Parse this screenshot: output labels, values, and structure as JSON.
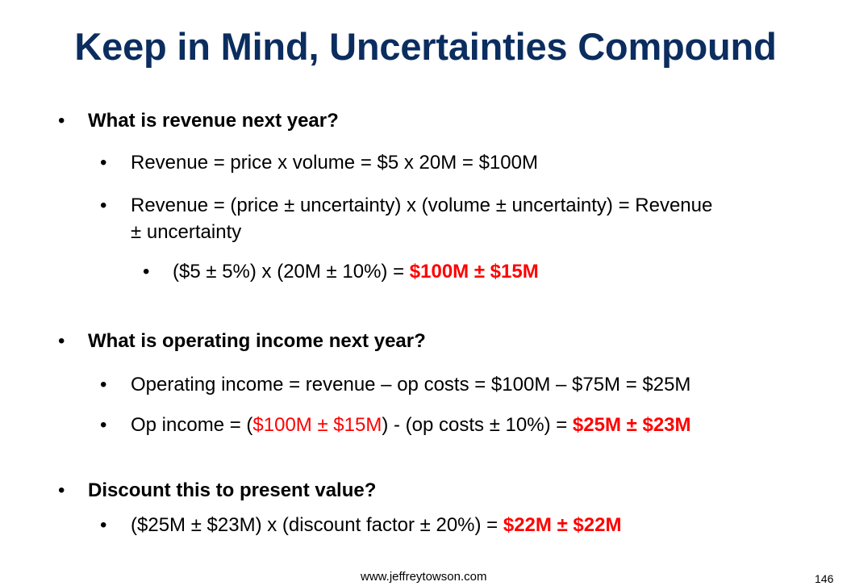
{
  "title": "Keep in Mind, Uncertainties Compound",
  "bullet_char": "•",
  "q1": "What is revenue next year?",
  "q1_a": "Revenue = price x volume = $5 x 20M = $100M",
  "q1_b_line1": "Revenue = (price ± uncertainty) x (volume ± uncertainty) = Revenue",
  "q1_b_line2": "± uncertainty",
  "q1_c_prefix": "($5 ± 5%) x (20M ± 10%) = ",
  "q1_c_result": "$100M ± $15M",
  "q2": "What is operating income next year?",
  "q2_a": "Operating income = revenue – op costs = $100M – $75M = $25M",
  "q2_b_prefix": "Op income = (",
  "q2_b_red": "$100M ± $15M",
  "q2_b_middle": ") - (op costs ± 10%) = ",
  "q2_b_result": "$25M ± $23M",
  "q3": "Discount this to present value?",
  "q3_a_prefix": "($25M ± $23M) x (discount factor ± 20%) = ",
  "q3_a_result": "$22M ± $22M",
  "footer_url": "www.jeffreytowson.com",
  "page_number": "146",
  "colors": {
    "title": "#0b2d5f",
    "highlight": "#ff0000"
  }
}
